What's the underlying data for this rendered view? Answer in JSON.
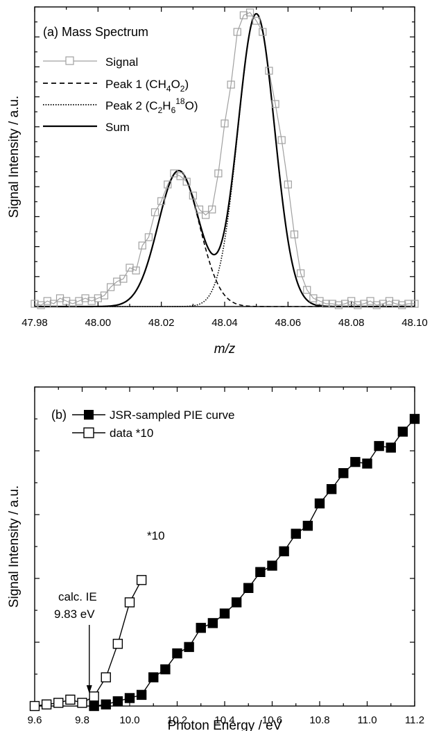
{
  "chart_data": [
    {
      "type": "line",
      "panel_label": "(a) Mass Spectrum",
      "xlabel": "m/z",
      "ylabel": "Signal Intensity / a.u.",
      "xlim": [
        47.98,
        48.1
      ],
      "ylim": [
        0,
        1.08
      ],
      "x_ticks": [
        47.98,
        48.0,
        48.02,
        48.04,
        48.06,
        48.08,
        48.1
      ],
      "x_tick_labels": [
        "47.98",
        "48.00",
        "48.02",
        "48.04",
        "48.06",
        "48.08",
        "48.10"
      ],
      "y_tick_labels_shown": false,
      "legend_position": "top-left",
      "legend": [
        {
          "key": "signal",
          "text": "Signal"
        },
        {
          "key": "peak1",
          "text": "Peak 1 (CH",
          "sub": "4",
          "text2": "O",
          "sub2": "2",
          "text3": ")"
        },
        {
          "key": "peak2",
          "text": "Peak 2 (C",
          "sub": "2",
          "text2": "H",
          "sub2": "6",
          "sup": "18",
          "text3": "O)"
        },
        {
          "key": "sum",
          "text": "Sum"
        }
      ],
      "series": [
        {
          "key": "signal",
          "style": "gray line with open square markers",
          "color": "#a0a0a0",
          "x": [
            47.98,
            47.982,
            47.984,
            47.986,
            47.988,
            47.99,
            47.992,
            47.994,
            47.996,
            47.998,
            48.0,
            48.002,
            48.004,
            48.006,
            48.008,
            48.01,
            48.012,
            48.014,
            48.016,
            48.018,
            48.02,
            48.022,
            48.024,
            48.026,
            48.028,
            48.03,
            48.032,
            48.034,
            48.036,
            48.038,
            48.04,
            48.042,
            48.044,
            48.046,
            48.048,
            48.05,
            48.052,
            48.054,
            48.056,
            48.058,
            48.06,
            48.062,
            48.064,
            48.066,
            48.068,
            48.07,
            48.072,
            48.074,
            48.076,
            48.078,
            48.08,
            48.082,
            48.084,
            48.086,
            48.088,
            48.09,
            48.092,
            48.094,
            48.096,
            48.098,
            48.1
          ],
          "y": [
            0.01,
            0.005,
            0.02,
            0.01,
            0.03,
            0.02,
            0.01,
            0.02,
            0.03,
            0.02,
            0.03,
            0.04,
            0.07,
            0.09,
            0.1,
            0.14,
            0.13,
            0.22,
            0.25,
            0.34,
            0.38,
            0.44,
            0.48,
            0.47,
            0.45,
            0.4,
            0.35,
            0.33,
            0.35,
            0.48,
            0.66,
            0.8,
            0.99,
            1.05,
            1.06,
            1.03,
            0.99,
            0.85,
            0.73,
            0.6,
            0.44,
            0.26,
            0.12,
            0.06,
            0.03,
            0.02,
            0.01,
            0.01,
            0.005,
            0.01,
            0.02,
            0.005,
            0.01,
            0.02,
            0.005,
            0.01,
            0.02,
            0.01,
            0.005,
            0.01,
            0.01
          ]
        },
        {
          "key": "peak1",
          "style": "dashed",
          "model": "gaussian",
          "center": 48.0255,
          "amplitude": 0.49,
          "sigma": 0.0065
        },
        {
          "key": "peak2",
          "style": "dotted",
          "model": "gaussian",
          "center": 48.05,
          "amplitude": 1.055,
          "sigma": 0.0058
        },
        {
          "key": "sum",
          "style": "solid",
          "model": "sum of peak1 and peak2"
        }
      ]
    },
    {
      "type": "line",
      "panel_label": "(b)",
      "xlabel": "Photon Energy / eV",
      "ylabel": "Signal Intensity / a.u.",
      "xlim": [
        9.6,
        11.2
      ],
      "ylim": [
        0,
        1.0
      ],
      "x_ticks": [
        9.6,
        9.8,
        10.0,
        10.2,
        10.4,
        10.6,
        10.8,
        11.0,
        11.2
      ],
      "x_tick_labels": [
        "9.6",
        "9.8",
        "10.0",
        "10.2",
        "10.4",
        "10.6",
        "10.8",
        "11.0",
        "11.2"
      ],
      "y_tick_labels_shown": false,
      "legend_position": "top-left",
      "legend": [
        {
          "key": "jsr",
          "text": "JSR-sampled PIE curve"
        },
        {
          "key": "data10",
          "text": "data *10"
        }
      ],
      "annotations": {
        "scale_label": "*10",
        "ie_line1": "calc. IE",
        "ie_line2": "9.83 eV",
        "ie_value": 9.83
      },
      "series": [
        {
          "key": "jsr",
          "style": "black line with filled square markers",
          "color": "#000000",
          "x": [
            9.85,
            9.9,
            9.95,
            10.0,
            10.05,
            10.1,
            10.15,
            10.2,
            10.25,
            10.3,
            10.35,
            10.4,
            10.45,
            10.5,
            10.55,
            10.6,
            10.65,
            10.7,
            10.75,
            10.8,
            10.85,
            10.9,
            10.95,
            11.0,
            11.05,
            11.1,
            11.15,
            11.2
          ],
          "y": [
            0.0,
            0.005,
            0.015,
            0.025,
            0.035,
            0.09,
            0.115,
            0.165,
            0.185,
            0.245,
            0.26,
            0.29,
            0.325,
            0.37,
            0.42,
            0.44,
            0.485,
            0.54,
            0.565,
            0.635,
            0.68,
            0.73,
            0.765,
            0.76,
            0.815,
            0.81,
            0.86,
            0.9
          ]
        },
        {
          "key": "data10",
          "style": "black line with open square markers",
          "color": "#000000",
          "x": [
            9.6,
            9.65,
            9.7,
            9.75,
            9.8,
            9.85,
            9.9,
            9.95,
            10.0,
            10.05
          ],
          "y": [
            0.0,
            0.005,
            0.01,
            0.02,
            0.01,
            0.03,
            0.09,
            0.195,
            0.325,
            0.395
          ]
        }
      ]
    }
  ]
}
